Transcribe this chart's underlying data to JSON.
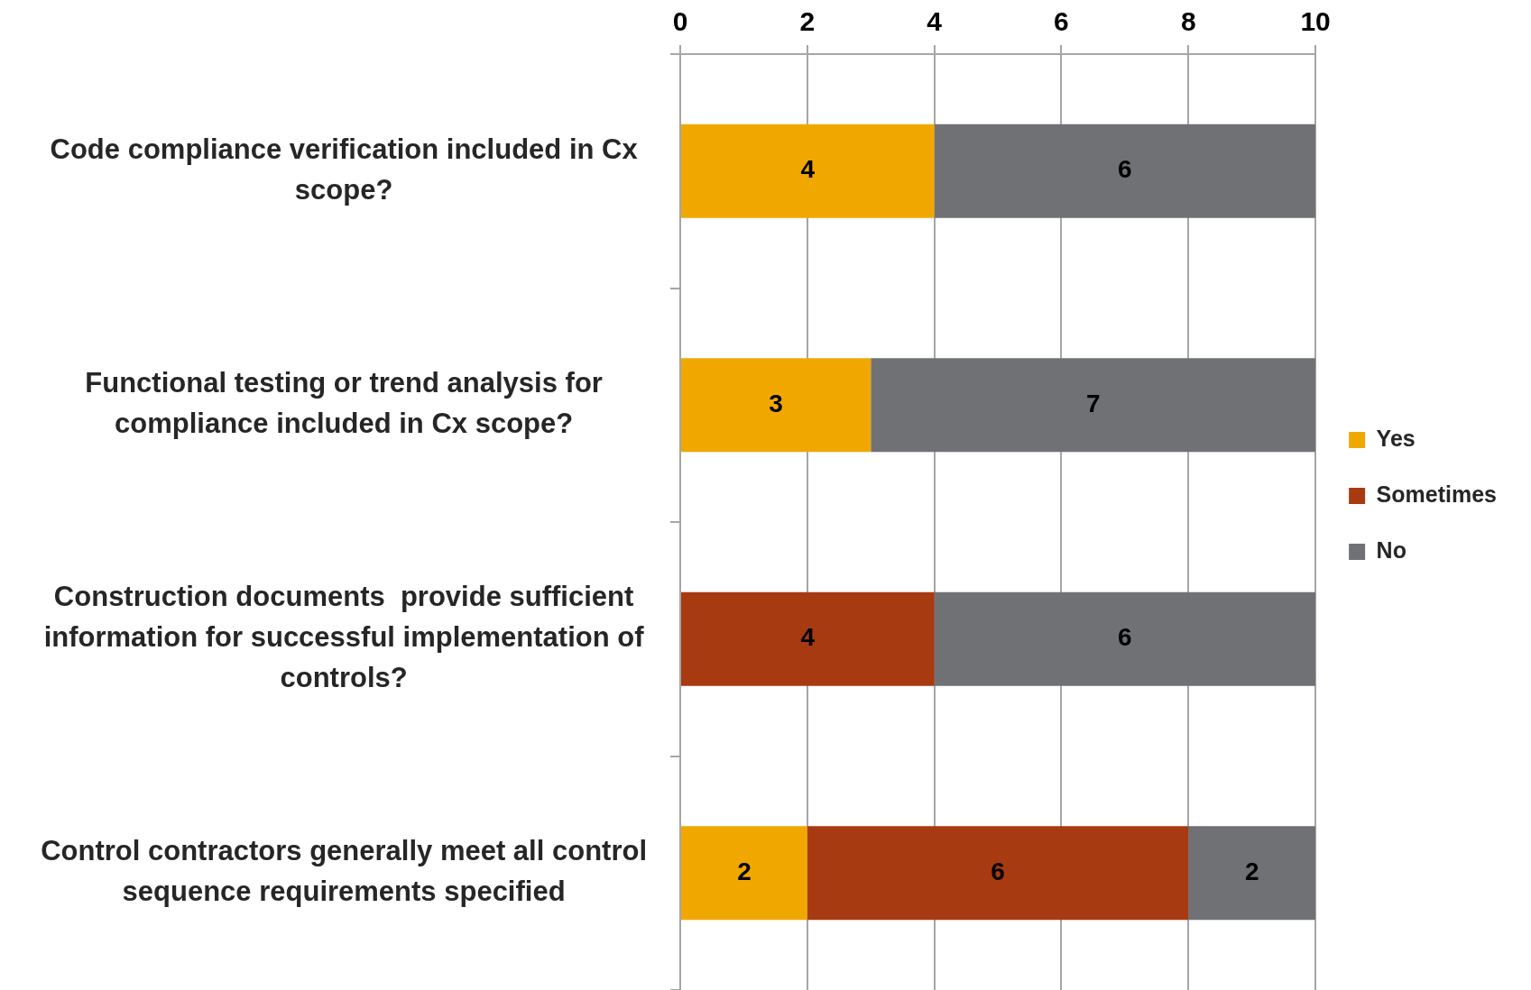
{
  "chart_data": {
    "type": "bar",
    "orientation": "horizontal",
    "stacked": true,
    "categories": [
      "Code compliance verification included in Cx scope?",
      "Functional testing or trend analysis for compliance included in Cx scope?",
      "Construction documents  provide sufficient information for successful implementation of controls?",
      "Control contractors generally meet all control sequence requirements specified"
    ],
    "series": [
      {
        "name": "Yes",
        "color": "#f0a800",
        "values": [
          4,
          3,
          null,
          2
        ]
      },
      {
        "name": "Sometimes",
        "color": "#a83a12",
        "values": [
          null,
          null,
          4,
          6
        ]
      },
      {
        "name": "No",
        "color": "#707175",
        "values": [
          6,
          7,
          6,
          2
        ]
      }
    ],
    "xlim": [
      0,
      10
    ],
    "xticks": [
      0,
      2,
      4,
      6,
      8,
      10
    ],
    "grid": "x",
    "legend": "right",
    "data_labels": true
  }
}
